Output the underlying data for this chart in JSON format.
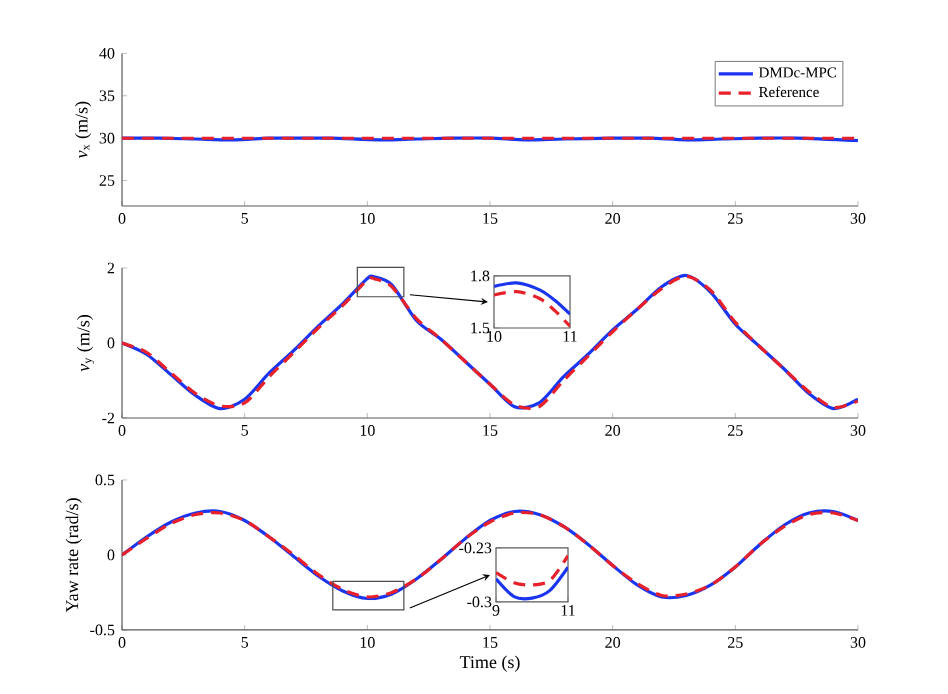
{
  "chart_data": [
    {
      "type": "line",
      "ylabel": "*v*$_{x}$ (m/s)",
      "xlim": [
        0,
        30
      ],
      "ylim": [
        22,
        40
      ],
      "xticks": [
        0,
        5,
        10,
        15,
        20,
        25,
        30
      ],
      "yticks": [
        25,
        30,
        35,
        40
      ],
      "legend": "top right",
      "series": [
        {
          "name": "DMDc-MPC",
          "color": "#1a35f0",
          "line_style": "solid",
          "x": [
            0,
            1.5,
            3,
            4.5,
            6,
            7,
            8.5,
            10.5,
            12,
            13.5,
            15,
            16.5,
            18,
            20,
            21.5,
            23,
            24.5,
            26,
            27.5,
            30
          ],
          "values": [
            30,
            30,
            29.9,
            29.8,
            30,
            30,
            30,
            29.8,
            29.9,
            30,
            30,
            29.8,
            29.9,
            30,
            30,
            29.8,
            29.9,
            30,
            30,
            29.7
          ]
        },
        {
          "name": "Reference",
          "color": "#e8202a",
          "line_style": "dashed",
          "x": [
            0,
            30
          ],
          "values": [
            30,
            30
          ]
        }
      ]
    },
    {
      "type": "line",
      "ylabel": "*v*$_{y}$ (m/s)",
      "xlim": [
        0,
        30
      ],
      "ylim": [
        -2,
        2
      ],
      "xticks": [
        0,
        5,
        10,
        15,
        20,
        25,
        30
      ],
      "yticks": [
        -2,
        0,
        2
      ],
      "series": [
        {
          "color": "#1a35f0",
          "line_style": "solid",
          "x": [
            0,
            1,
            2,
            3,
            4,
            5,
            6,
            7,
            8,
            9,
            10,
            10.3,
            11,
            12,
            13,
            14,
            15,
            16,
            17,
            18,
            19,
            20,
            21,
            22,
            23,
            24,
            25,
            26,
            27,
            28,
            29,
            30
          ],
          "values": [
            0,
            -0.3,
            -0.85,
            -1.4,
            -1.75,
            -1.5,
            -0.8,
            -0.2,
            0.45,
            1.05,
            1.72,
            1.76,
            1.55,
            0.6,
            0.1,
            -0.5,
            -1.1,
            -1.7,
            -1.6,
            -0.9,
            -0.3,
            0.35,
            0.9,
            1.5,
            1.8,
            1.35,
            0.5,
            -0.1,
            -0.7,
            -1.35,
            -1.75,
            -1.5
          ]
        },
        {
          "color": "#e8202a",
          "line_style": "dashed",
          "x": [
            0,
            1,
            2,
            3,
            4,
            5,
            6,
            7,
            8,
            9,
            10,
            10.3,
            11,
            12,
            13,
            14,
            15,
            16,
            17,
            18,
            19,
            20,
            21,
            22,
            23,
            24,
            25,
            26,
            27,
            28,
            29,
            30
          ],
          "values": [
            0,
            -0.25,
            -0.8,
            -1.35,
            -1.68,
            -1.6,
            -0.9,
            -0.25,
            0.4,
            1.0,
            1.68,
            1.71,
            1.5,
            0.65,
            0.1,
            -0.5,
            -1.1,
            -1.65,
            -1.7,
            -1.0,
            -0.35,
            0.3,
            0.9,
            1.45,
            1.78,
            1.4,
            0.55,
            -0.1,
            -0.7,
            -1.3,
            -1.72,
            -1.55
          ]
        }
      ]
    },
    {
      "type": "line",
      "xlim": [
        10,
        11
      ],
      "ylim": [
        1.5,
        1.8
      ],
      "xticks": [
        10,
        11
      ],
      "yticks": [
        1.5,
        1.8
      ],
      "series": [
        {
          "color": "#1a35f0",
          "line_style": "solid",
          "x": [
            10,
            10.3,
            10.6,
            10.8,
            11
          ],
          "values": [
            1.74,
            1.76,
            1.72,
            1.66,
            1.58
          ]
        },
        {
          "color": "#e8202a",
          "line_style": "dashed",
          "x": [
            10,
            10.3,
            10.6,
            10.8,
            11
          ],
          "values": [
            1.69,
            1.71,
            1.67,
            1.6,
            1.51
          ]
        }
      ]
    },
    {
      "type": "line",
      "xlabel": "Time (s)",
      "ylabel": "Yaw rate (rad/s)",
      "xlim": [
        0,
        30
      ],
      "ylim": [
        -0.5,
        0.5
      ],
      "xticks": [
        0,
        5,
        10,
        15,
        20,
        25,
        30
      ],
      "yticks": [
        -0.5,
        0,
        0.5
      ],
      "series": [
        {
          "color": "#1a35f0",
          "line_style": "solid",
          "x": [
            0,
            1,
            2,
            3,
            4,
            5,
            6,
            7,
            8,
            9,
            10,
            11,
            12,
            13,
            14,
            15,
            16,
            17,
            18,
            19,
            20,
            21,
            22,
            23,
            24,
            25,
            26,
            27,
            28,
            29,
            30
          ],
          "values": [
            0,
            0.12,
            0.22,
            0.28,
            0.29,
            0.23,
            0.12,
            -0.01,
            -0.14,
            -0.24,
            -0.29,
            -0.26,
            -0.16,
            -0.03,
            0.11,
            0.23,
            0.29,
            0.27,
            0.19,
            0.07,
            -0.07,
            -0.2,
            -0.28,
            -0.27,
            -0.2,
            -0.08,
            0.07,
            0.2,
            0.28,
            0.29,
            0.23
          ]
        },
        {
          "color": "#e8202a",
          "line_style": "dashed",
          "x": [
            0,
            1,
            2,
            3,
            4,
            5,
            6,
            7,
            8,
            9,
            10,
            11,
            12,
            13,
            14,
            15,
            16,
            17,
            18,
            19,
            20,
            21,
            22,
            23,
            24,
            25,
            26,
            27,
            28,
            29,
            30
          ],
          "values": [
            0,
            0.11,
            0.21,
            0.27,
            0.28,
            0.23,
            0.12,
            0,
            -0.13,
            -0.23,
            -0.28,
            -0.25,
            -0.16,
            -0.03,
            0.11,
            0.22,
            0.28,
            0.27,
            0.19,
            0.07,
            -0.07,
            -0.19,
            -0.27,
            -0.26,
            -0.2,
            -0.08,
            0.07,
            0.19,
            0.27,
            0.28,
            0.23
          ]
        }
      ]
    },
    {
      "type": "line",
      "xlim": [
        9,
        11
      ],
      "ylim": [
        -0.3,
        -0.23
      ],
      "xticks": [
        9,
        11
      ],
      "yticks": [
        -0.3,
        -0.23
      ],
      "series": [
        {
          "color": "#1a35f0",
          "line_style": "solid",
          "x": [
            9,
            9.5,
            10,
            10.5,
            11
          ],
          "values": [
            -0.27,
            -0.293,
            -0.295,
            -0.285,
            -0.255
          ]
        },
        {
          "color": "#e8202a",
          "line_style": "dashed",
          "x": [
            9,
            9.5,
            10,
            10.5,
            11
          ],
          "values": [
            -0.262,
            -0.275,
            -0.278,
            -0.272,
            -0.24
          ]
        }
      ]
    }
  ]
}
